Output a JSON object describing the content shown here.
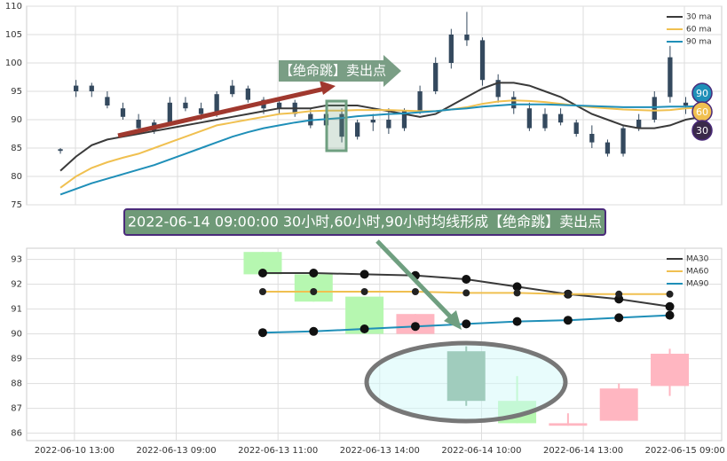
{
  "chart_data": [
    {
      "type": "candlestick",
      "legend": "upper right",
      "xlim": [
        -2.16,
        42.3
      ],
      "ylim": [
        75,
        110
      ],
      "yticks": [
        75,
        80,
        85,
        90,
        95,
        100,
        105,
        110
      ],
      "grid": true,
      "candle_color": "#34495e",
      "candles": {
        "open": [
          84.5,
          96,
          95,
          94,
          92,
          90,
          88,
          89.5,
          93,
          92,
          91,
          94.5,
          95.5,
          93.5,
          92,
          93,
          91,
          89,
          91,
          87,
          89.5,
          90,
          88.5,
          91.5,
          95,
          100,
          105,
          104,
          97,
          94,
          92,
          88.5,
          91,
          89.5,
          87.5,
          86,
          84,
          88.5,
          90,
          94,
          93,
          92.5
        ],
        "high": [
          85,
          97,
          96.5,
          95,
          93,
          91,
          90,
          94,
          94,
          93,
          95,
          97,
          96,
          94,
          93.5,
          93.5,
          92,
          92,
          92,
          90,
          91,
          92,
          92,
          96,
          101,
          106,
          109,
          104.5,
          98,
          95,
          93,
          92,
          92,
          90,
          89,
          86.5,
          89,
          91,
          95,
          103,
          94,
          94
        ],
        "low": [
          84,
          94,
          94,
          92,
          90,
          88,
          87.5,
          89,
          91.5,
          90,
          90.5,
          94,
          93,
          91,
          91,
          90.5,
          88.5,
          88,
          86,
          86.5,
          88,
          87.5,
          88,
          91,
          94.5,
          99,
          103,
          96,
          93,
          91,
          88,
          88,
          89,
          87,
          85,
          83.5,
          83.5,
          88,
          89.5,
          93,
          91,
          91.5
        ],
        "close": [
          84.8,
          95,
          96,
          92.5,
          90.5,
          88.5,
          89.5,
          93,
          92,
          91,
          94.5,
          96,
          93.5,
          92,
          93,
          91,
          89,
          91,
          87,
          89.5,
          90,
          88.5,
          91.5,
          95,
          100,
          105,
          104,
          97,
          94,
          92,
          88.5,
          91,
          89.5,
          87.5,
          86,
          84,
          88.5,
          90,
          94,
          101,
          92.5,
          93
        ]
      },
      "series": [
        {
          "name": "30 ma",
          "color": "#3a3a3a",
          "values": [
            81,
            83.5,
            85.5,
            86.5,
            87,
            87.5,
            88,
            88.5,
            89,
            89.5,
            90,
            90.5,
            91,
            91.5,
            92,
            92,
            92,
            92.5,
            92.5,
            92.5,
            92,
            91.5,
            91,
            90.5,
            91,
            92.5,
            94,
            95.5,
            96.5,
            96.5,
            96,
            95,
            94,
            92.5,
            91,
            90,
            89,
            88.5,
            88.5,
            89,
            90,
            90.5
          ]
        },
        {
          "name": "60 ma",
          "color": "#f0c050",
          "values": [
            78,
            80,
            81.5,
            82.5,
            83.3,
            84,
            85,
            86,
            87,
            88,
            89,
            89.5,
            90,
            90.5,
            91,
            91.2,
            91.5,
            91.6,
            91.6,
            91.7,
            91.7,
            91.7,
            91.6,
            91.5,
            91.5,
            91.8,
            92.2,
            92.8,
            93.2,
            93.4,
            93.3,
            93.1,
            92.8,
            92.5,
            92.2,
            92,
            91.8,
            91.7,
            91.6,
            91.7,
            92,
            92.1
          ]
        },
        {
          "name": "90 ma",
          "color": "#1f8fb8",
          "values": [
            76.8,
            77.8,
            78.8,
            79.6,
            80.4,
            81.2,
            82,
            83,
            84,
            85,
            86,
            87,
            87.8,
            88.5,
            89,
            89.5,
            89.9,
            90.1,
            90.3,
            90.6,
            90.8,
            91,
            91.1,
            91.3,
            91.5,
            91.8,
            92,
            92.3,
            92.5,
            92.7,
            92.7,
            92.7,
            92.6,
            92.5,
            92.4,
            92.3,
            92.2,
            92.2,
            92.2,
            92.3,
            92.3,
            92.4
          ]
        }
      ],
      "annotation": "【绝命跳】卖出点",
      "end_labels": [
        {
          "text": "90",
          "color": "#1f8fb8"
        },
        {
          "text": "60",
          "color": "#f0c050"
        },
        {
          "text": "30",
          "color": "#3a2a4a"
        }
      ]
    },
    {
      "type": "candlestick",
      "title": "2022-06-14 09:00:00 30小时,60小时,90小时均线形成【绝命跳】卖出点",
      "legend": "upper right",
      "xlim": [
        -4.64,
        9.02
      ],
      "xticks": [
        {
          "value": -3.7,
          "label": "2022-06-10 13:00"
        },
        {
          "value": -1.7,
          "label": "2022-06-13 09:00"
        },
        {
          "value": 0.3,
          "label": "2022-06-13 11:00"
        },
        {
          "value": 2.3,
          "label": "2022-06-13 14:00"
        },
        {
          "value": 4.3,
          "label": "2022-06-14 10:00"
        },
        {
          "value": 6.3,
          "label": "2022-06-14 13:00"
        },
        {
          "value": 8.3,
          "label": "2022-06-15 09:00"
        }
      ],
      "ylim": [
        85.7,
        93.45
      ],
      "yticks": [
        86,
        87,
        88,
        89,
        90,
        91,
        92,
        93
      ],
      "grid": true,
      "candles": {
        "open": [
          93.3,
          92.4,
          91.5,
          90.0,
          89.3,
          87.3,
          86.3,
          86.5,
          87.9
        ],
        "high": [
          93.3,
          92.4,
          91.5,
          90.8,
          89.5,
          88.3,
          86.8,
          88.0,
          89.4
        ],
        "low": [
          92.4,
          91.3,
          90.0,
          90.0,
          87.1,
          86.4,
          86.3,
          86.5,
          87.5
        ],
        "close": [
          92.4,
          91.3,
          90.0,
          90.8,
          87.3,
          86.4,
          86.4,
          87.8,
          89.2
        ]
      },
      "candle_colors": [
        "#b6f7b0",
        "#b6f7b0",
        "#b6f7b0",
        "#ffb6c1",
        "#6f9f80",
        "#b6f7b0",
        "#ffb6c1",
        "#ffb6c1",
        "#ffb6c1"
      ],
      "series": [
        {
          "name": "MA30",
          "color": "#3a3a3a",
          "values": [
            92.45,
            92.45,
            92.4,
            92.35,
            92.2,
            91.9,
            91.6,
            91.4,
            91.1
          ]
        },
        {
          "name": "MA60",
          "color": "#f0c050",
          "values": [
            91.7,
            91.7,
            91.7,
            91.7,
            91.65,
            91.65,
            91.6,
            91.6,
            91.6
          ]
        },
        {
          "name": "MA90",
          "color": "#1f8fb8",
          "values": [
            90.05,
            90.1,
            90.2,
            90.3,
            90.4,
            90.5,
            90.55,
            90.65,
            90.75
          ]
        }
      ]
    }
  ]
}
